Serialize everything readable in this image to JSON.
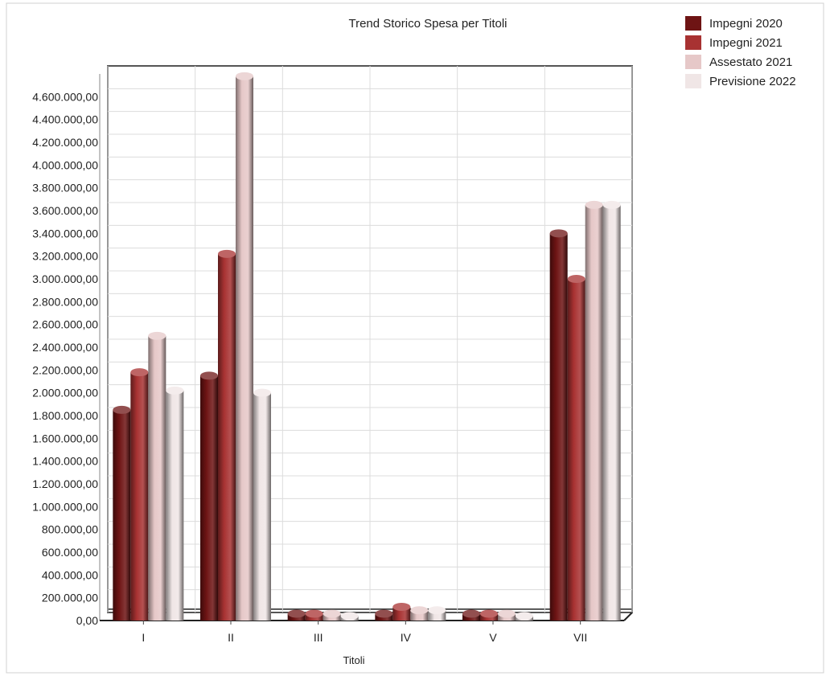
{
  "chart_data": {
    "type": "bar",
    "title": "Trend Storico Spesa per Titoli",
    "xlabel": "Titoli",
    "ylabel": "",
    "categories": [
      "I",
      "II",
      "III",
      "IV",
      "V",
      "VII"
    ],
    "ylim": [
      0,
      4800000
    ],
    "yticks": [
      0,
      200000,
      400000,
      600000,
      800000,
      1000000,
      1200000,
      1400000,
      1600000,
      1800000,
      2000000,
      2200000,
      2400000,
      2600000,
      2800000,
      3000000,
      3200000,
      3400000,
      3600000,
      3800000,
      4000000,
      4200000,
      4400000,
      4600000
    ],
    "ytick_labels": [
      "0,00",
      "200.000,00",
      "400.000,00",
      "600.000,00",
      "800.000,00",
      "1.000.000,00",
      "1.200.000,00",
      "1.400.000,00",
      "1.600.000,00",
      "1.800.000,00",
      "2.000.000,00",
      "2.200.000,00",
      "2.400.000,00",
      "2.600.000,00",
      "2.800.000,00",
      "3.000.000,00",
      "3.200.000,00",
      "3.400.000,00",
      "3.600.000,00",
      "3.800.000,00",
      "4.000.000,00",
      "4.200.000,00",
      "4.400.000,00",
      "4.600.000,00"
    ],
    "grid": true,
    "legend_position": "top-right",
    "series": [
      {
        "name": "Impegni 2020",
        "color": "#6e1414",
        "values": [
          1850000,
          2150000,
          60000,
          60000,
          60000,
          3400000
        ]
      },
      {
        "name": "Impegni 2021",
        "color": "#a83232",
        "values": [
          2180000,
          3220000,
          60000,
          120000,
          60000,
          3000000
        ]
      },
      {
        "name": "Assestato 2021",
        "color": "#e6c8c8",
        "values": [
          2500000,
          4780000,
          60000,
          90000,
          60000,
          3650000
        ]
      },
      {
        "name": "Previsione 2022",
        "color": "#f0e6e6",
        "values": [
          2020000,
          2000000,
          40000,
          90000,
          40000,
          3650000
        ]
      }
    ]
  }
}
